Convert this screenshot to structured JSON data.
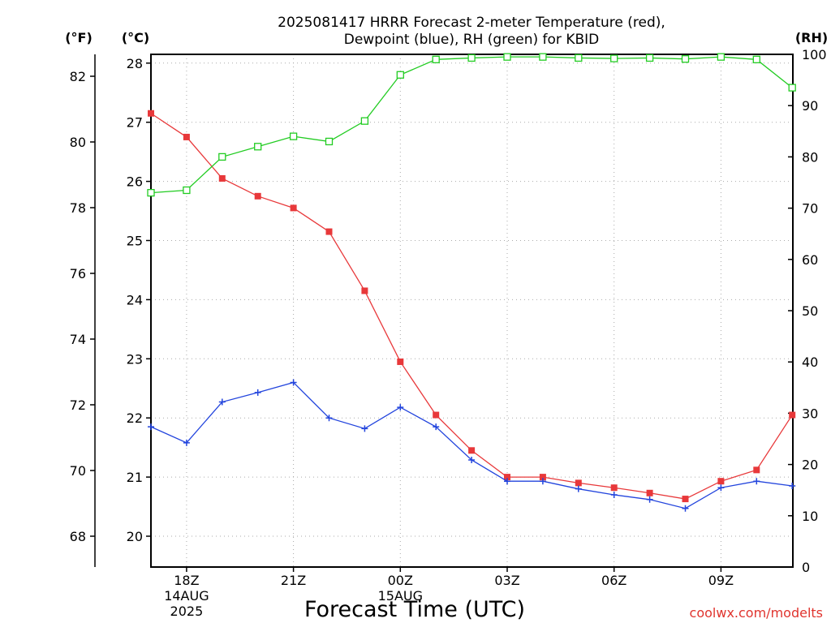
{
  "title_lines": [
    "2025081417 HRRR Forecast 2-meter Temperature (red),",
    "Dewpoint (blue), RH (green) for KBID"
  ],
  "credit": "coolwx.com/modelts",
  "colors": {
    "temperature": "#e8383a",
    "dewpoint": "#2244dd",
    "rh": "#22cc22",
    "grid": "#aaaaaa",
    "credit": "#e0342e"
  },
  "chart_data": {
    "type": "line",
    "xlabel": "Forecast Time (UTC)",
    "x": [
      "17Z",
      "18Z",
      "19Z",
      "20Z",
      "21Z",
      "22Z",
      "23Z",
      "00Z",
      "01Z",
      "02Z",
      "03Z",
      "04Z",
      "05Z",
      "06Z",
      "07Z",
      "08Z",
      "09Z",
      "10Z",
      "11Z"
    ],
    "x_tick_labels": [
      {
        "x": "18Z",
        "lines": [
          "18Z",
          "14AUG",
          "2025"
        ]
      },
      {
        "x": "21Z",
        "lines": [
          "21Z"
        ]
      },
      {
        "x": "00Z",
        "lines": [
          "00Z",
          "15AUG"
        ]
      },
      {
        "x": "03Z",
        "lines": [
          "03Z"
        ]
      },
      {
        "x": "06Z",
        "lines": [
          "06Z"
        ]
      },
      {
        "x": "09Z",
        "lines": [
          "09Z"
        ]
      }
    ],
    "y_left_unit": "(°C)",
    "y_left_far_unit": "(°F)",
    "y_right_unit": "(RH)",
    "ylim_c": [
      19.5,
      28.2
    ],
    "ylim_rh": [
      0,
      100
    ],
    "y_ticks_c": [
      20,
      21,
      22,
      23,
      24,
      25,
      26,
      27,
      28
    ],
    "y_ticks_f": [
      68,
      70,
      72,
      74,
      76,
      78,
      80,
      82
    ],
    "y_ticks_rh": [
      0,
      10,
      20,
      30,
      40,
      50,
      60,
      70,
      80,
      90,
      100
    ],
    "grid": true,
    "series": [
      {
        "key": "temp",
        "axis": "c",
        "marker": "filled-square",
        "values": [
          27.15,
          26.75,
          26.05,
          25.75,
          25.55,
          25.15,
          24.15,
          22.95,
          22.05,
          21.45,
          21.0,
          21.0,
          20.9,
          20.82,
          20.73,
          20.63,
          20.93,
          21.12,
          22.05
        ]
      },
      {
        "key": "dewpoint",
        "axis": "c",
        "marker": "plus",
        "values": [
          21.85,
          21.58,
          22.27,
          22.43,
          22.6,
          22.0,
          21.82,
          22.18,
          21.85,
          21.29,
          20.93,
          20.93,
          20.8,
          20.7,
          20.62,
          20.47,
          20.82,
          20.93,
          20.85
        ]
      },
      {
        "key": "rh",
        "axis": "rh",
        "marker": "open-square",
        "values": [
          73,
          73.5,
          80,
          82,
          84,
          83,
          87,
          96,
          99,
          99.3,
          99.5,
          99.5,
          99.3,
          99.2,
          99.3,
          99.1,
          99.5,
          99.0,
          93.5
        ]
      }
    ]
  }
}
